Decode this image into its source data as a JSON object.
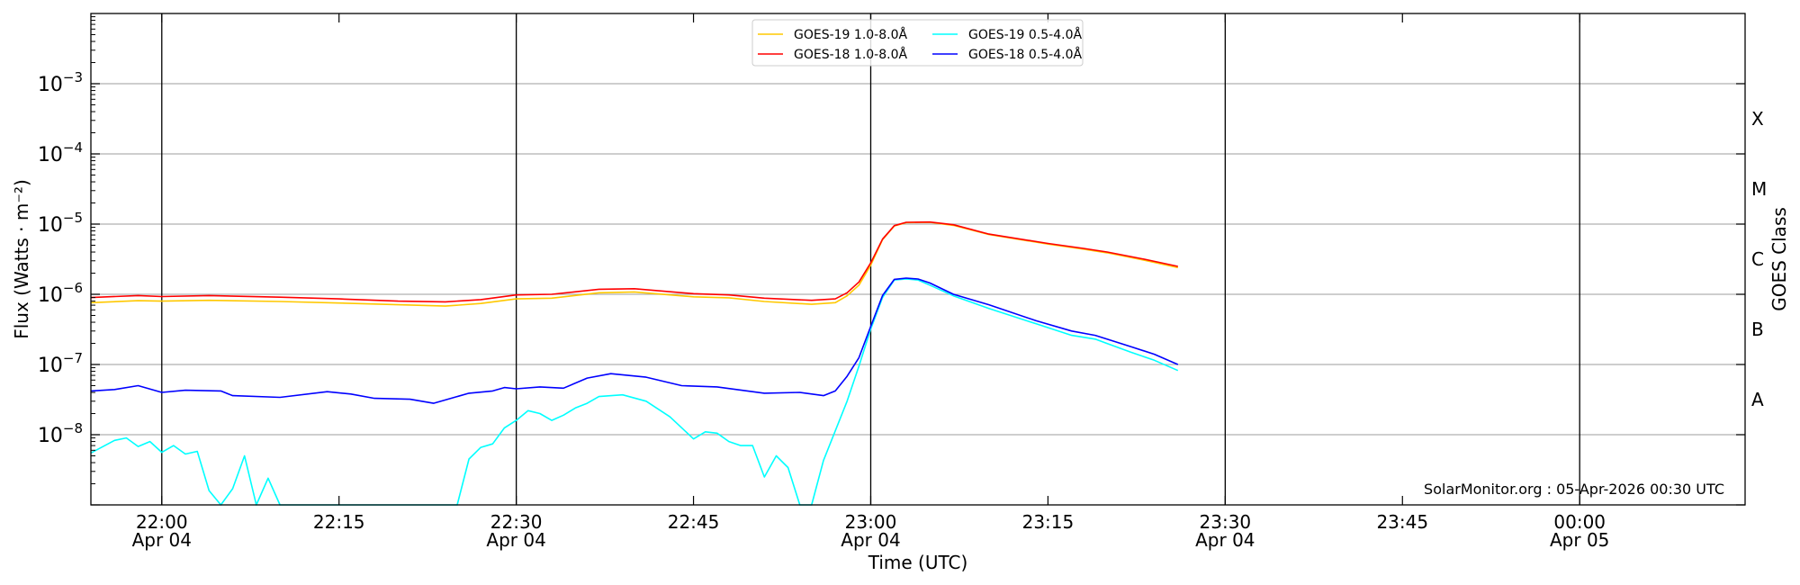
{
  "chart_data": {
    "type": "line",
    "title": "",
    "xlabel": "Time (UTC)",
    "ylabel": "Flux (Watts · m⁻²)",
    "ylabel_right": "GOES Class",
    "yscale": "log",
    "ylim": [
      1e-09,
      0.01
    ],
    "xlim": [
      "21:54",
      "00:14"
    ],
    "grid": true,
    "legend_position": "top-center",
    "y_ticks": [
      {
        "value": 1e-08,
        "base": "10",
        "exp": "−8"
      },
      {
        "value": 1e-07,
        "base": "10",
        "exp": "−7"
      },
      {
        "value": 1e-06,
        "base": "10",
        "exp": "−6"
      },
      {
        "value": 1e-05,
        "base": "10",
        "exp": "−5"
      },
      {
        "value": 0.0001,
        "base": "10",
        "exp": "−4"
      },
      {
        "value": 0.001,
        "base": "10",
        "exp": "−3"
      }
    ],
    "x_ticks": [
      {
        "time": "22:00",
        "label": "22:00",
        "sub": "Apr 04",
        "major": true
      },
      {
        "time": "22:15",
        "label": "22:15",
        "sub": "",
        "major": false
      },
      {
        "time": "22:30",
        "label": "22:30",
        "sub": "Apr 04",
        "major": true
      },
      {
        "time": "22:45",
        "label": "22:45",
        "sub": "",
        "major": false
      },
      {
        "time": "23:00",
        "label": "23:00",
        "sub": "Apr 04",
        "major": true
      },
      {
        "time": "23:15",
        "label": "23:15",
        "sub": "",
        "major": false
      },
      {
        "time": "23:30",
        "label": "23:30",
        "sub": "Apr 04",
        "major": true
      },
      {
        "time": "23:45",
        "label": "23:45",
        "sub": "",
        "major": false
      },
      {
        "time": "24:00",
        "label": "00:00",
        "sub": "Apr 05",
        "major": true
      }
    ],
    "class_labels": [
      {
        "label": "A",
        "value": 3.16e-08
      },
      {
        "label": "B",
        "value": 3.16e-07
      },
      {
        "label": "C",
        "value": 3.16e-06
      },
      {
        "label": "M",
        "value": 3.16e-05
      },
      {
        "label": "X",
        "value": 0.000316
      }
    ],
    "annotation": "SolarMonitor.org : 05-Apr-2026 00:30 UTC",
    "series": [
      {
        "name": "GOES-19 1.0-8.0Å",
        "color": "#ffc800",
        "points": [
          [
            "21:54",
            7.6e-07
          ],
          [
            "21:58",
            8.1e-07
          ],
          [
            "22:00",
            8e-07
          ],
          [
            "22:04",
            8.2e-07
          ],
          [
            "22:10",
            7.9e-07
          ],
          [
            "22:15",
            7.5e-07
          ],
          [
            "22:20",
            7.1e-07
          ],
          [
            "22:24",
            6.8e-07
          ],
          [
            "22:27",
            7.4e-07
          ],
          [
            "22:30",
            8.6e-07
          ],
          [
            "22:33",
            8.8e-07
          ],
          [
            "22:37",
            1.05e-06
          ],
          [
            "22:40",
            1.08e-06
          ],
          [
            "22:45",
            9.2e-07
          ],
          [
            "22:48",
            8.9e-07
          ],
          [
            "22:51",
            7.9e-07
          ],
          [
            "22:55",
            7.2e-07
          ],
          [
            "22:57",
            7.6e-07
          ],
          [
            "22:58",
            9.5e-07
          ],
          [
            "22:59",
            1.35e-06
          ],
          [
            "23:00",
            2.6e-06
          ],
          [
            "23:01",
            6e-06
          ],
          [
            "23:02",
            9.4e-06
          ],
          [
            "23:03",
            1.05e-05
          ],
          [
            "23:05",
            1.06e-05
          ],
          [
            "23:07",
            9.6e-06
          ],
          [
            "23:10",
            7.1e-06
          ],
          [
            "23:15",
            5.2e-06
          ],
          [
            "23:18",
            4.4e-06
          ],
          [
            "23:20",
            3.9e-06
          ],
          [
            "23:23",
            3.1e-06
          ],
          [
            "23:26",
            2.4e-06
          ]
        ]
      },
      {
        "name": "GOES-18 1.0-8.0Å",
        "color": "#ff0000",
        "points": [
          [
            "21:54",
            9e-07
          ],
          [
            "21:58",
            9.6e-07
          ],
          [
            "22:00",
            9.3e-07
          ],
          [
            "22:04",
            9.6e-07
          ],
          [
            "22:10",
            9.1e-07
          ],
          [
            "22:15",
            8.6e-07
          ],
          [
            "22:20",
            8e-07
          ],
          [
            "22:24",
            7.8e-07
          ],
          [
            "22:27",
            8.4e-07
          ],
          [
            "22:30",
            9.8e-07
          ],
          [
            "22:33",
            1e-06
          ],
          [
            "22:37",
            1.18e-06
          ],
          [
            "22:40",
            1.2e-06
          ],
          [
            "22:45",
            1.02e-06
          ],
          [
            "22:48",
            9.8e-07
          ],
          [
            "22:51",
            8.8e-07
          ],
          [
            "22:55",
            8.2e-07
          ],
          [
            "22:57",
            8.6e-07
          ],
          [
            "22:58",
            1.05e-06
          ],
          [
            "22:59",
            1.5e-06
          ],
          [
            "23:00",
            2.8e-06
          ],
          [
            "23:01",
            6.1e-06
          ],
          [
            "23:02",
            9.5e-06
          ],
          [
            "23:03",
            1.06e-05
          ],
          [
            "23:05",
            1.07e-05
          ],
          [
            "23:07",
            9.8e-06
          ],
          [
            "23:10",
            7.2e-06
          ],
          [
            "23:15",
            5.3e-06
          ],
          [
            "23:18",
            4.5e-06
          ],
          [
            "23:20",
            4e-06
          ],
          [
            "23:23",
            3.2e-06
          ],
          [
            "23:26",
            2.5e-06
          ]
        ]
      },
      {
        "name": "GOES-19 0.5-4.0Å",
        "color": "#00ffff",
        "points": [
          [
            "21:54",
            5.5e-09
          ],
          [
            "21:56",
            8.3e-09
          ],
          [
            "21:57",
            9e-09
          ],
          [
            "21:58",
            6.8e-09
          ],
          [
            "21:59",
            8e-09
          ],
          [
            "22:00",
            5.6e-09
          ],
          [
            "22:01",
            7e-09
          ],
          [
            "22:02",
            5.3e-09
          ],
          [
            "22:03",
            5.8e-09
          ],
          [
            "22:04",
            1.6e-09
          ],
          [
            "22:05",
            1e-09
          ],
          [
            "22:06",
            1.7e-09
          ],
          [
            "22:07",
            5e-09
          ],
          [
            "22:08",
            1e-09
          ],
          [
            "22:09",
            2.4e-09
          ],
          [
            "22:10",
            1e-09
          ],
          [
            "22:25",
            1e-09
          ],
          [
            "22:26",
            4.5e-09
          ],
          [
            "22:27",
            6.6e-09
          ],
          [
            "22:28",
            7.4e-09
          ],
          [
            "22:29",
            1.25e-08
          ],
          [
            "22:30",
            1.6e-08
          ],
          [
            "22:31",
            2.2e-08
          ],
          [
            "22:32",
            2e-08
          ],
          [
            "22:33",
            1.6e-08
          ],
          [
            "22:34",
            1.9e-08
          ],
          [
            "22:35",
            2.4e-08
          ],
          [
            "22:36",
            2.8e-08
          ],
          [
            "22:37",
            3.5e-08
          ],
          [
            "22:39",
            3.7e-08
          ],
          [
            "22:41",
            3e-08
          ],
          [
            "22:43",
            1.8e-08
          ],
          [
            "22:45",
            8.7e-09
          ],
          [
            "22:46",
            1.1e-08
          ],
          [
            "22:47",
            1.05e-08
          ],
          [
            "22:48",
            8e-09
          ],
          [
            "22:49",
            7e-09
          ],
          [
            "22:50",
            7e-09
          ],
          [
            "22:51",
            2.5e-09
          ],
          [
            "22:52",
            5e-09
          ],
          [
            "22:53",
            3.4e-09
          ],
          [
            "22:54",
            1e-09
          ],
          [
            "22:55",
            1e-09
          ],
          [
            "22:56",
            4.3e-09
          ],
          [
            "22:58",
            3e-08
          ],
          [
            "22:59",
            9.5e-08
          ],
          [
            "23:00",
            3.2e-07
          ],
          [
            "23:01",
            9e-07
          ],
          [
            "23:02",
            1.6e-06
          ],
          [
            "23:03",
            1.65e-06
          ],
          [
            "23:04",
            1.6e-06
          ],
          [
            "23:05",
            1.35e-06
          ],
          [
            "23:07",
            9.5e-07
          ],
          [
            "23:10",
            6.3e-07
          ],
          [
            "23:14",
            3.8e-07
          ],
          [
            "23:17",
            2.6e-07
          ],
          [
            "23:19",
            2.3e-07
          ],
          [
            "23:22",
            1.5e-07
          ],
          [
            "23:24",
            1.15e-07
          ],
          [
            "23:26",
            8.2e-08
          ]
        ]
      },
      {
        "name": "GOES-18 0.5-4.0Å",
        "color": "#0000ff",
        "points": [
          [
            "21:54",
            4.2e-08
          ],
          [
            "21:56",
            4.4e-08
          ],
          [
            "21:58",
            5e-08
          ],
          [
            "22:00",
            4e-08
          ],
          [
            "22:02",
            4.3e-08
          ],
          [
            "22:05",
            4.2e-08
          ],
          [
            "22:06",
            3.6e-08
          ],
          [
            "22:10",
            3.4e-08
          ],
          [
            "22:14",
            4.1e-08
          ],
          [
            "22:16",
            3.8e-08
          ],
          [
            "22:18",
            3.3e-08
          ],
          [
            "22:21",
            3.2e-08
          ],
          [
            "22:23",
            2.8e-08
          ],
          [
            "22:26",
            3.9e-08
          ],
          [
            "22:28",
            4.2e-08
          ],
          [
            "22:29",
            4.7e-08
          ],
          [
            "22:30",
            4.5e-08
          ],
          [
            "22:32",
            4.8e-08
          ],
          [
            "22:34",
            4.6e-08
          ],
          [
            "22:36",
            6.4e-08
          ],
          [
            "22:38",
            7.4e-08
          ],
          [
            "22:41",
            6.6e-08
          ],
          [
            "22:44",
            5e-08
          ],
          [
            "22:47",
            4.8e-08
          ],
          [
            "22:51",
            3.9e-08
          ],
          [
            "22:54",
            4e-08
          ],
          [
            "22:56",
            3.6e-08
          ],
          [
            "22:57",
            4.2e-08
          ],
          [
            "22:58",
            6.8e-08
          ],
          [
            "22:59",
            1.25e-07
          ],
          [
            "23:00",
            3.5e-07
          ],
          [
            "23:01",
            9.6e-07
          ],
          [
            "23:02",
            1.63e-06
          ],
          [
            "23:03",
            1.7e-06
          ],
          [
            "23:04",
            1.65e-06
          ],
          [
            "23:05",
            1.45e-06
          ],
          [
            "23:07",
            1e-06
          ],
          [
            "23:10",
            7.1e-07
          ],
          [
            "23:14",
            4.2e-07
          ],
          [
            "23:17",
            3e-07
          ],
          [
            "23:19",
            2.6e-07
          ],
          [
            "23:22",
            1.8e-07
          ],
          [
            "23:24",
            1.4e-07
          ],
          [
            "23:26",
            1e-07
          ]
        ]
      }
    ]
  }
}
